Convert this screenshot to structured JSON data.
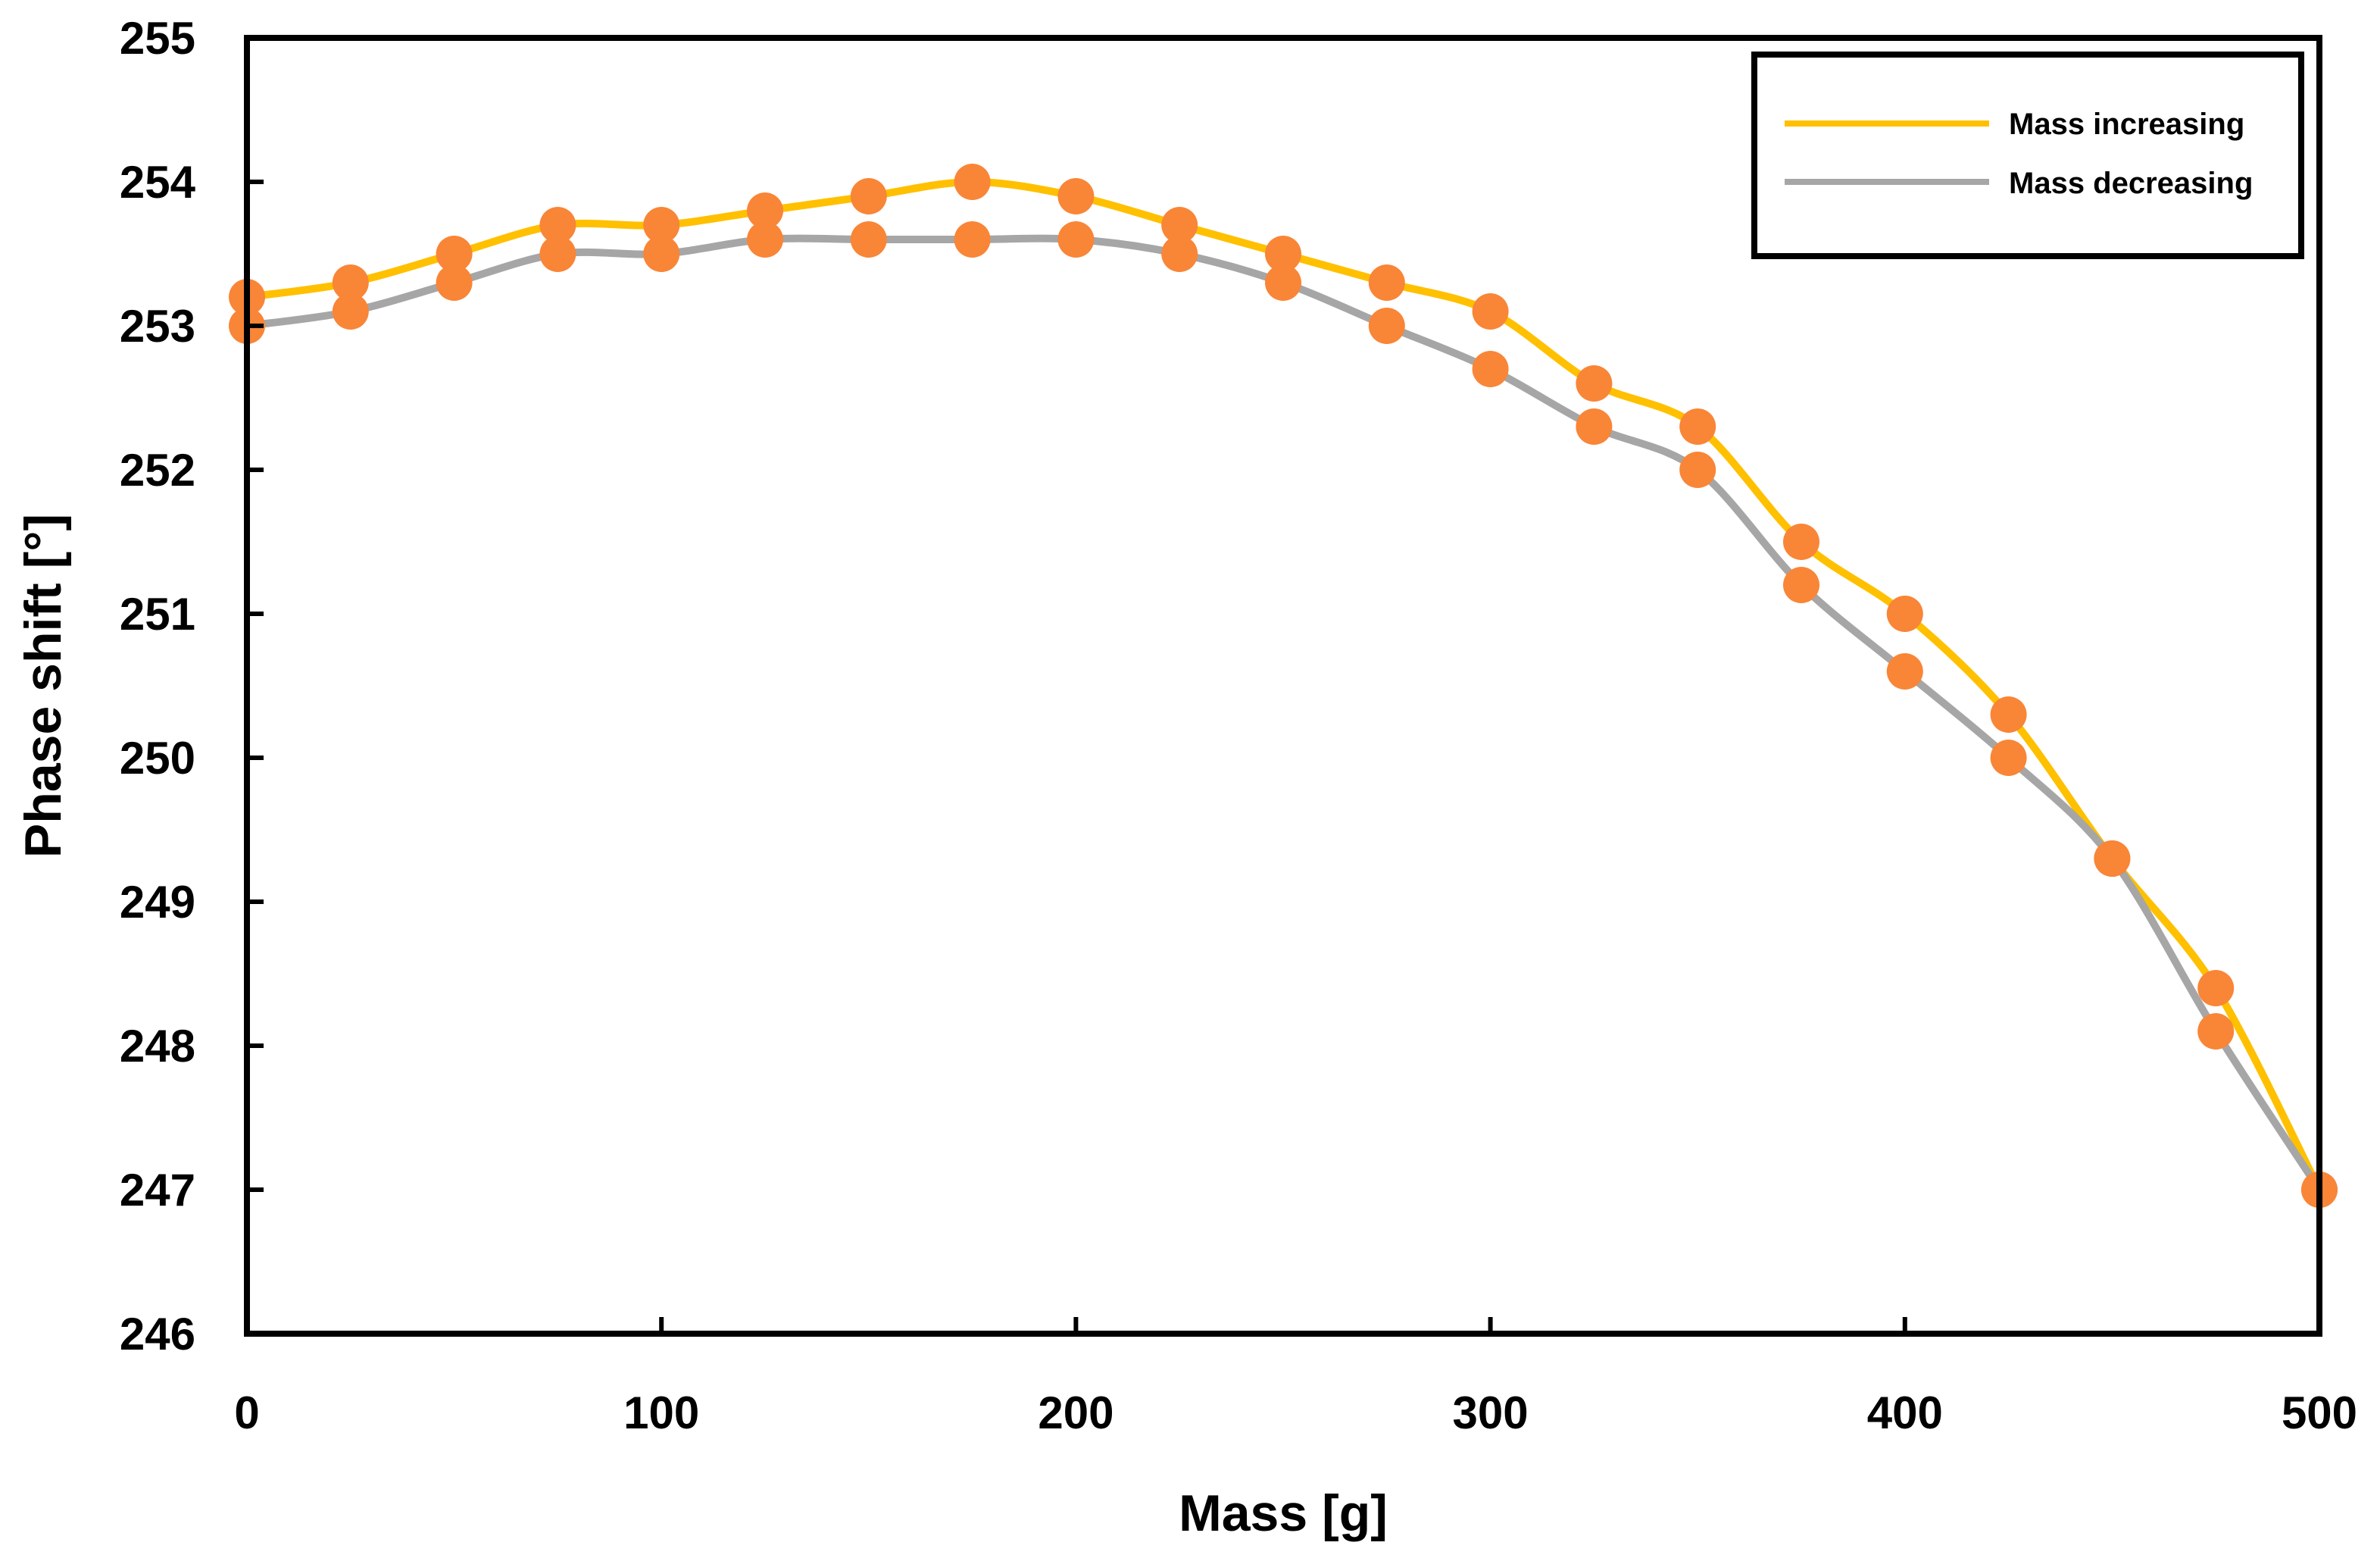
{
  "chart_data": {
    "type": "line",
    "title": "",
    "xlabel": "Mass [g]",
    "ylabel": "Phase shift [°]",
    "xlim": [
      0,
      500
    ],
    "ylim": [
      246,
      255
    ],
    "x_ticks": [
      0,
      100,
      200,
      300,
      400,
      500
    ],
    "y_ticks": [
      246,
      247,
      248,
      249,
      250,
      251,
      252,
      253,
      254,
      255
    ],
    "grid": false,
    "legend_position": "top-right",
    "marker_color": "#F98537",
    "x": [
      0,
      25,
      50,
      75,
      100,
      125,
      150,
      175,
      200,
      225,
      250,
      275,
      300,
      325,
      350,
      375,
      400,
      425,
      450,
      475,
      500
    ],
    "series": [
      {
        "name": "Mass increasing",
        "color": "#FFC000",
        "values": [
          253.2,
          253.3,
          253.5,
          253.7,
          253.7,
          253.8,
          253.9,
          254.0,
          253.9,
          253.7,
          253.5,
          253.3,
          253.1,
          252.6,
          252.3,
          251.5,
          251.0,
          250.3,
          249.3,
          248.4,
          247.0
        ]
      },
      {
        "name": "Mass decreasing",
        "color": "#A6A6A6",
        "values": [
          253.0,
          253.1,
          253.3,
          253.5,
          253.5,
          253.6,
          253.6,
          253.6,
          253.6,
          253.5,
          253.3,
          253.0,
          252.7,
          252.3,
          252.0,
          251.2,
          250.6,
          250.0,
          249.3,
          248.1,
          247.0
        ]
      }
    ]
  }
}
